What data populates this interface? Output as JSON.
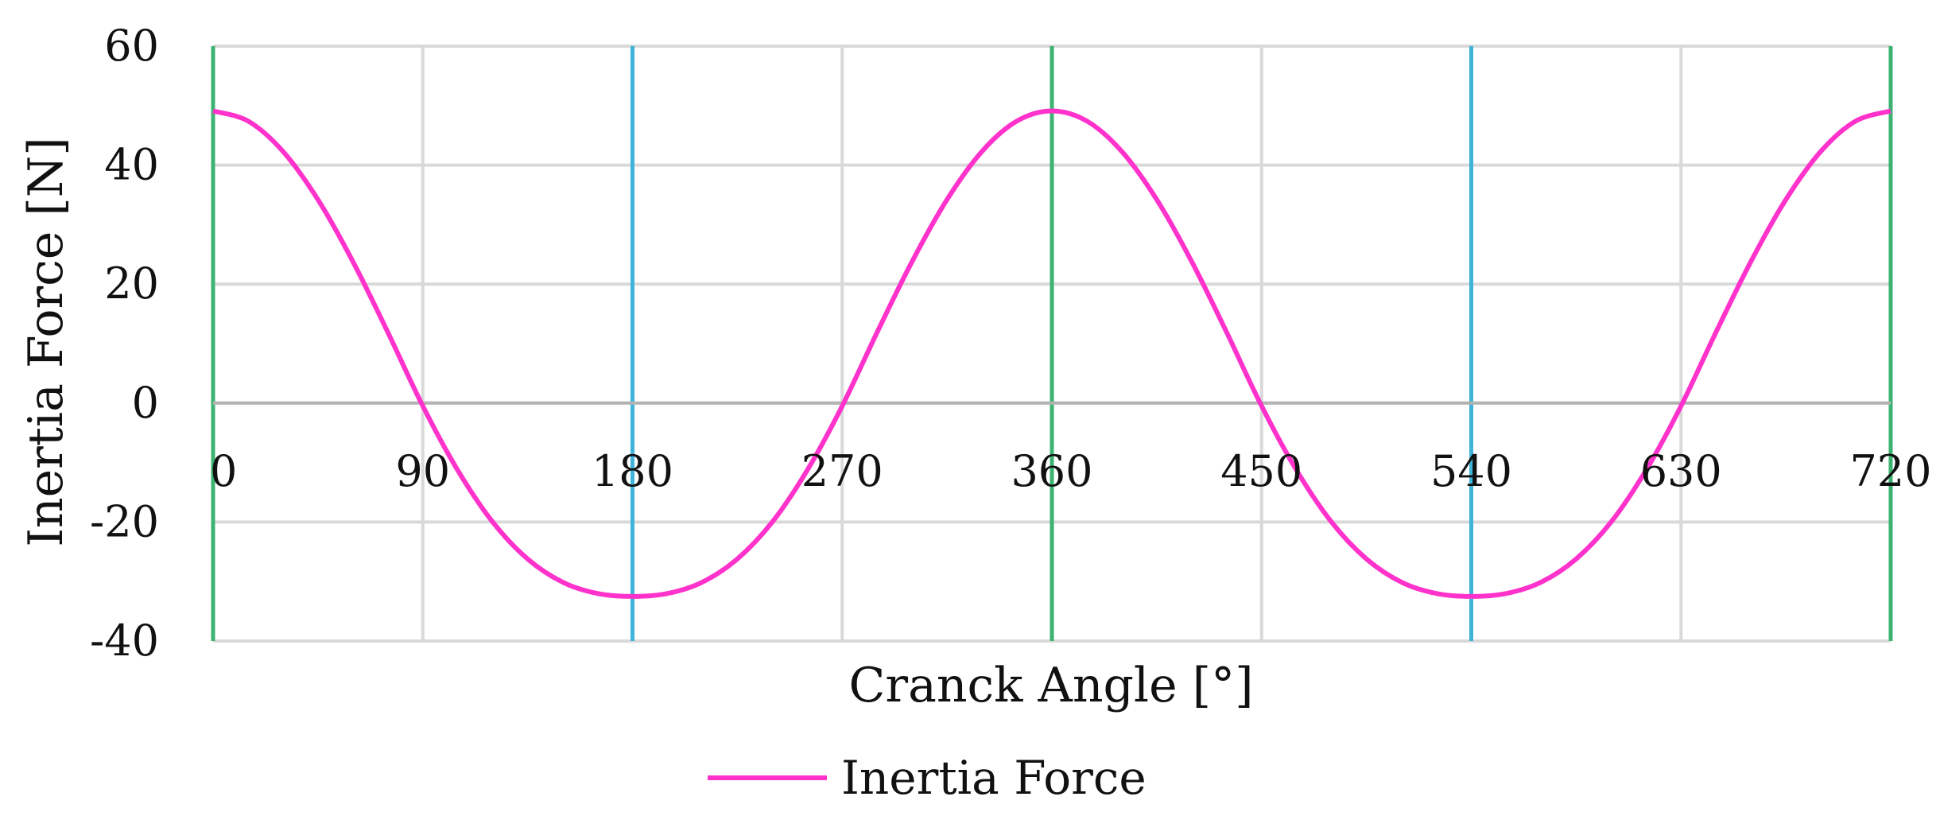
{
  "chart_data": {
    "type": "line",
    "title": "",
    "xlabel": "Cranck Angle [°]",
    "ylabel": "Inertia Force [N]",
    "xlim": [
      0,
      720
    ],
    "ylim": [
      -40,
      60
    ],
    "x_ticks": [
      "0",
      "90",
      "180",
      "270",
      "360",
      "450",
      "540",
      "630",
      "720"
    ],
    "y_ticks": [
      "60",
      "40",
      "20",
      "0",
      "-20",
      "-40"
    ],
    "grid": true,
    "legend": {
      "position": "bottom-center"
    },
    "marker_lines": [
      {
        "x": 0,
        "color": "#3cb371"
      },
      {
        "x": 180,
        "color": "#3fb3d9"
      },
      {
        "x": 360,
        "color": "#3cb371"
      },
      {
        "x": 540,
        "color": "#3fb3d9"
      },
      {
        "x": 720,
        "color": "#3cb371"
      }
    ],
    "series": [
      {
        "name": "Inertia Force",
        "color": "#ff33cc",
        "x": [
          0,
          15,
          30,
          45,
          60,
          75,
          90,
          105,
          120,
          135,
          150,
          165,
          180,
          195,
          210,
          225,
          240,
          255,
          270,
          285,
          300,
          315,
          330,
          345,
          360,
          375,
          390,
          405,
          420,
          435,
          450,
          465,
          480,
          495,
          510,
          525,
          540,
          555,
          570,
          585,
          600,
          615,
          630,
          645,
          660,
          675,
          690,
          705,
          720
        ],
        "y": [
          49.1,
          47.4,
          42.3,
          34.2,
          23.8,
          11.9,
          -0.5,
          -11.3,
          -20.0,
          -26.2,
          -30.1,
          -32.0,
          -32.5,
          -32.0,
          -30.1,
          -26.2,
          -20.0,
          -11.3,
          -0.5,
          11.9,
          23.8,
          34.2,
          42.3,
          47.4,
          49.1,
          47.4,
          42.3,
          34.2,
          23.8,
          11.9,
          -0.5,
          -11.3,
          -20.0,
          -26.2,
          -30.1,
          -32.0,
          -32.5,
          -32.0,
          -30.1,
          -26.2,
          -20.0,
          -11.3,
          -0.5,
          11.9,
          23.8,
          34.2,
          42.3,
          47.4,
          49.1
        ]
      }
    ]
  }
}
